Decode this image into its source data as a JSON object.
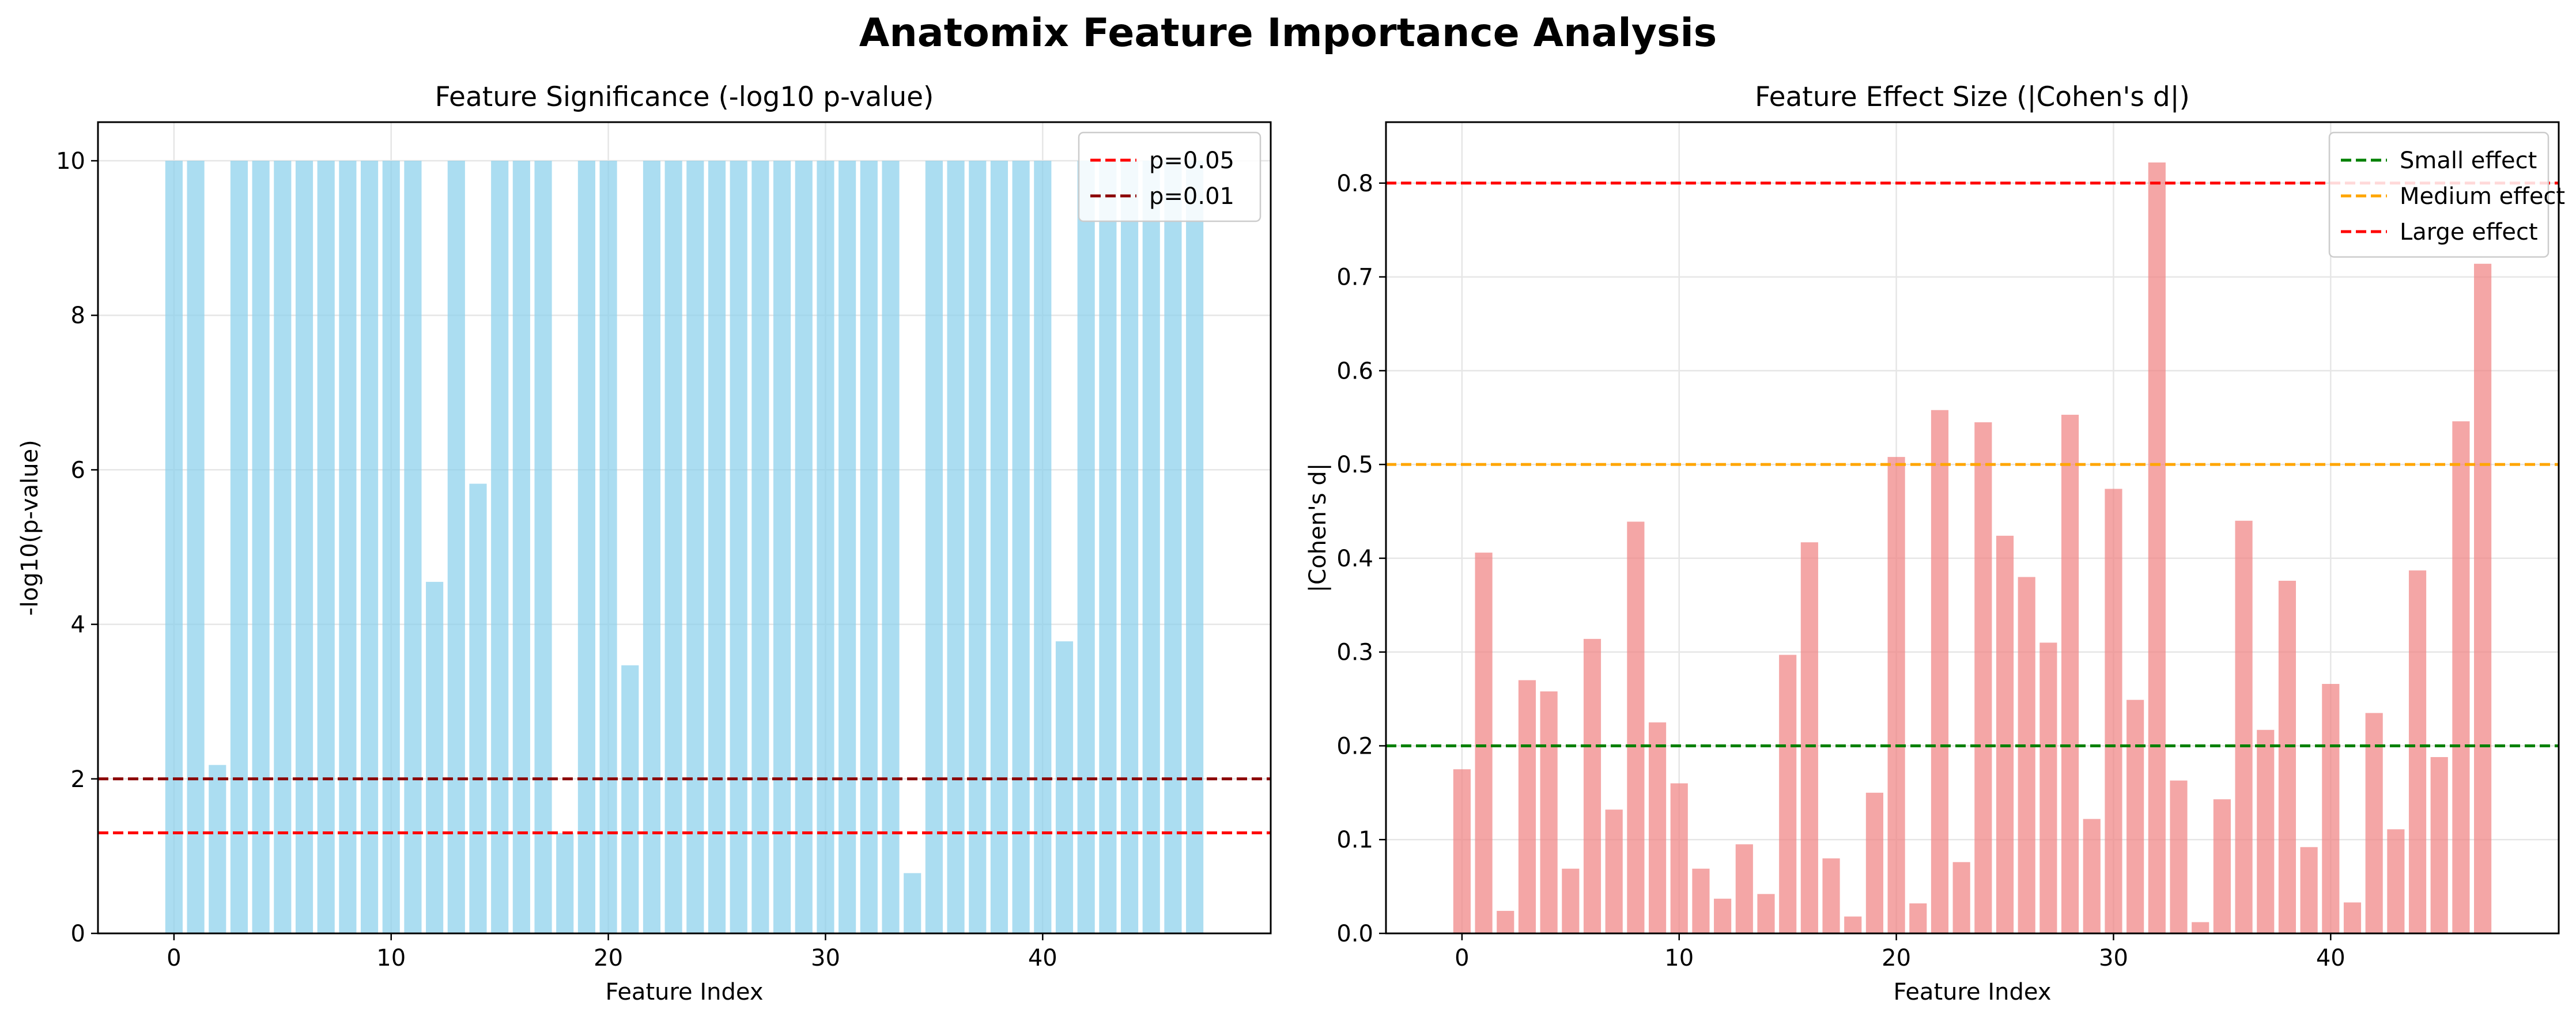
{
  "figure": {
    "title": "Anatomix Feature Importance Analysis"
  },
  "chart_data": [
    {
      "type": "bar",
      "title": "Feature Significance (-log10 p-value)",
      "xlabel": "Feature Index",
      "ylabel": "-log10(p-value)",
      "xlim": [
        -3.5,
        50.5
      ],
      "ylim": [
        0,
        10.5
      ],
      "xticks": [
        0,
        10,
        20,
        30,
        40
      ],
      "yticks": [
        0,
        2,
        4,
        6,
        8,
        10
      ],
      "ytick_decimals": 0,
      "grid": true,
      "legend_position": "top-right",
      "bar_color": "#87ceeb",
      "categories": [
        0,
        1,
        2,
        3,
        4,
        5,
        6,
        7,
        8,
        9,
        10,
        11,
        12,
        13,
        14,
        15,
        16,
        17,
        18,
        19,
        20,
        21,
        22,
        23,
        24,
        25,
        26,
        27,
        28,
        29,
        30,
        31,
        32,
        33,
        34,
        35,
        36,
        37,
        38,
        39,
        40,
        41,
        42,
        43,
        44,
        45,
        46,
        47
      ],
      "values": [
        10,
        10,
        2.18,
        10,
        10,
        10,
        10,
        10,
        10,
        10,
        10,
        10,
        4.55,
        10,
        5.82,
        10,
        10,
        10,
        1.3,
        10,
        10,
        3.47,
        10,
        10,
        10,
        10,
        10,
        10,
        10,
        10,
        10,
        10,
        10,
        10,
        0.78,
        10,
        10,
        10,
        10,
        10,
        10,
        3.78,
        10,
        10,
        10,
        10,
        10,
        10
      ],
      "reference_lines": [
        {
          "label": "p=0.05",
          "y": 1.301,
          "color": "#ff0000"
        },
        {
          "label": "p=0.01",
          "y": 2.0,
          "color": "#8b0000"
        }
      ]
    },
    {
      "type": "bar",
      "title": "Feature Effect Size (|Cohen's d|)",
      "xlabel": "Feature Index",
      "ylabel": "|Cohen's d|",
      "xlim": [
        -3.5,
        50.5
      ],
      "ylim": [
        0,
        0.865
      ],
      "xticks": [
        0,
        10,
        20,
        30,
        40
      ],
      "yticks": [
        0.0,
        0.1,
        0.2,
        0.3,
        0.4,
        0.5,
        0.6,
        0.7,
        0.8
      ],
      "ytick_decimals": 1,
      "grid": true,
      "legend_position": "top-right",
      "bar_color": "#f08080",
      "categories": [
        0,
        1,
        2,
        3,
        4,
        5,
        6,
        7,
        8,
        9,
        10,
        11,
        12,
        13,
        14,
        15,
        16,
        17,
        18,
        19,
        20,
        21,
        22,
        23,
        24,
        25,
        26,
        27,
        28,
        29,
        30,
        31,
        32,
        33,
        34,
        35,
        36,
        37,
        38,
        39,
        40,
        41,
        42,
        43,
        44,
        45,
        46,
        47
      ],
      "values": [
        0.175,
        0.406,
        0.024,
        0.27,
        0.258,
        0.069,
        0.314,
        0.132,
        0.439,
        0.225,
        0.16,
        0.069,
        0.037,
        0.095,
        0.042,
        0.297,
        0.417,
        0.08,
        0.018,
        0.15,
        0.508,
        0.032,
        0.558,
        0.076,
        0.545,
        0.424,
        0.38,
        0.31,
        0.553,
        0.122,
        0.474,
        0.249,
        0.822,
        0.163,
        0.012,
        0.143,
        0.44,
        0.217,
        0.376,
        0.092,
        0.266,
        0.033,
        0.235,
        0.111,
        0.387,
        0.188,
        0.546,
        0.714
      ],
      "reference_lines": [
        {
          "label": "Small effect",
          "y": 0.2,
          "color": "#008000"
        },
        {
          "label": "Medium effect",
          "y": 0.5,
          "color": "#ffa500"
        },
        {
          "label": "Large effect",
          "y": 0.8,
          "color": "#ff0000"
        }
      ]
    }
  ]
}
